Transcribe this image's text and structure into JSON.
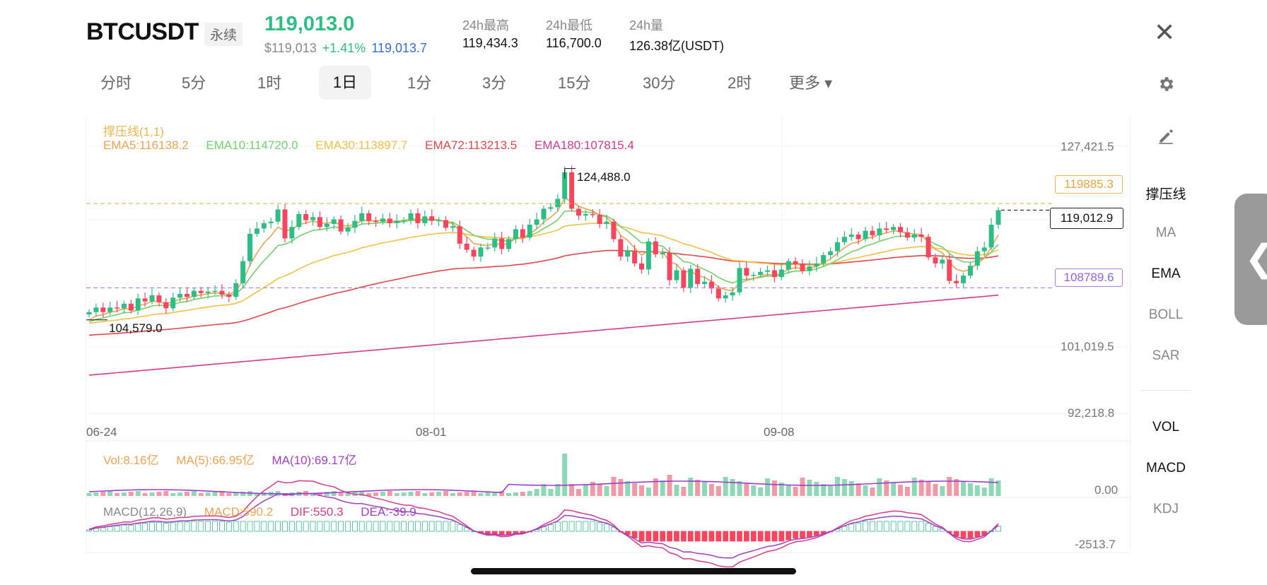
{
  "header": {
    "symbol": "BTCUSDT",
    "contract_type": "永续",
    "last_price": "119,013.0",
    "usd_price": "$119,013",
    "change_pct": "+1.41%",
    "mark_price": "119,013.7",
    "stats": [
      {
        "label": "24h最高",
        "value": "119,434.3"
      },
      {
        "label": "24h最低",
        "value": "116,700.0"
      },
      {
        "label": "24h量",
        "value": "126.38亿(USDT)"
      }
    ],
    "close_icon": "close-icon",
    "settings_icon": "gear-icon"
  },
  "timeframes": [
    "分时",
    "5分",
    "1时",
    "1日",
    "1分",
    "3分",
    "15分",
    "30分",
    "2时",
    "更多 ▾"
  ],
  "active_timeframe": "1日",
  "side_panel": {
    "draw_icon": "pencil-icon",
    "main_indicators": [
      "撑压线",
      "MA",
      "EMA",
      "BOLL",
      "SAR"
    ],
    "sub_indicators": [
      "VOL",
      "MACD",
      "KDJ"
    ],
    "active": [
      "撑压线",
      "EMA",
      "VOL",
      "MACD"
    ]
  },
  "colors": {
    "up": "#2dbd85",
    "down": "#f6465d",
    "ema5": "#f0a24e",
    "ema10": "#6fd36a",
    "ema30": "#f5c044",
    "ema72": "#e04848",
    "ema180": "#d63a8a",
    "support_resist": "#e6b84e",
    "support": "#b07ce8"
  },
  "chart_data": {
    "type": "candlestick",
    "x_ticks": [
      "06-24",
      "08-01",
      "09-08"
    ],
    "y_ticks": [
      "127,421.5",
      "101,019.5",
      "92,218.8"
    ],
    "ylim": [
      92218.8,
      127421.5
    ],
    "legend_top": "撑压线(1,1)",
    "ema_legend": [
      {
        "label": "EMA5:116138.2",
        "key": "ema5"
      },
      {
        "label": "EMA10:114720.0",
        "key": "ema10"
      },
      {
        "label": "EMA30:113897.7",
        "key": "ema30"
      },
      {
        "label": "EMA72:113213.5",
        "key": "ema72"
      },
      {
        "label": "EMA180:107815.4",
        "key": "ema180"
      }
    ],
    "resistance_line": {
      "value": 119885.3,
      "label": "119885.3"
    },
    "support_line": {
      "value": 108789.6,
      "label": "108789.6"
    },
    "current_price_label": {
      "value": 119012.9,
      "label": "119,012.9"
    },
    "max_annotation": {
      "value": 124488.0,
      "label": "124,488.0"
    },
    "min_annotation": {
      "value": 104579.0,
      "label": "104,579.0"
    },
    "candles_close": [
      105600,
      106200,
      105600,
      106200,
      106100,
      106700,
      105800,
      107400,
      107000,
      107800,
      106900,
      106100,
      107500,
      108000,
      107600,
      108400,
      108100,
      108300,
      108400,
      107900,
      107600,
      109400,
      112300,
      115900,
      116600,
      117300,
      117500,
      119100,
      115300,
      116800,
      118500,
      117700,
      118100,
      116800,
      117200,
      117800,
      116200,
      116700,
      117600,
      118600,
      117600,
      117500,
      117900,
      117300,
      117600,
      117700,
      118600,
      117300,
      118200,
      117600,
      117700,
      116700,
      116900,
      114600,
      113800,
      112900,
      114100,
      114100,
      115300,
      113900,
      115200,
      116500,
      115400,
      117100,
      117800,
      119200,
      119400,
      120500,
      124000,
      119200,
      118300,
      118500,
      118400,
      117200,
      117500,
      115200,
      112900,
      113700,
      112000,
      111200,
      114900,
      113200,
      113400,
      109800,
      111100,
      108800,
      111300,
      109300,
      109600,
      108700,
      107400,
      107800,
      108200,
      111400,
      110400,
      110500,
      110900,
      111100,
      110200,
      111200,
      112300,
      111900,
      111000,
      111600,
      112000,
      113100,
      113600,
      114800,
      115500,
      115800,
      115200,
      116300,
      115700,
      116600,
      116400,
      116800,
      116100,
      115400,
      115800,
      115500,
      112800,
      112000,
      112500,
      109700,
      109400,
      110400,
      111700,
      113600,
      114100,
      117100,
      119000
    ],
    "volume_panel": {
      "legend": [
        {
          "label": "Vol:8.16亿",
          "key": "ema5"
        },
        {
          "label": "MA(5):66.95亿",
          "key": "ema5"
        },
        {
          "label": "MA(10):69.17亿",
          "key": "vol_ma10"
        }
      ],
      "y_label": "0.00"
    },
    "macd_panel": {
      "legend": [
        {
          "label": "MACD(12,26,9)",
          "key": "grey"
        },
        {
          "label": "MACD:590.2",
          "key": "ema5"
        },
        {
          "label": "DIF:550.3",
          "key": "ema180"
        },
        {
          "label": "DEA:-39.9",
          "key": "vol_ma10"
        }
      ],
      "y_label": "-2513.7"
    }
  }
}
